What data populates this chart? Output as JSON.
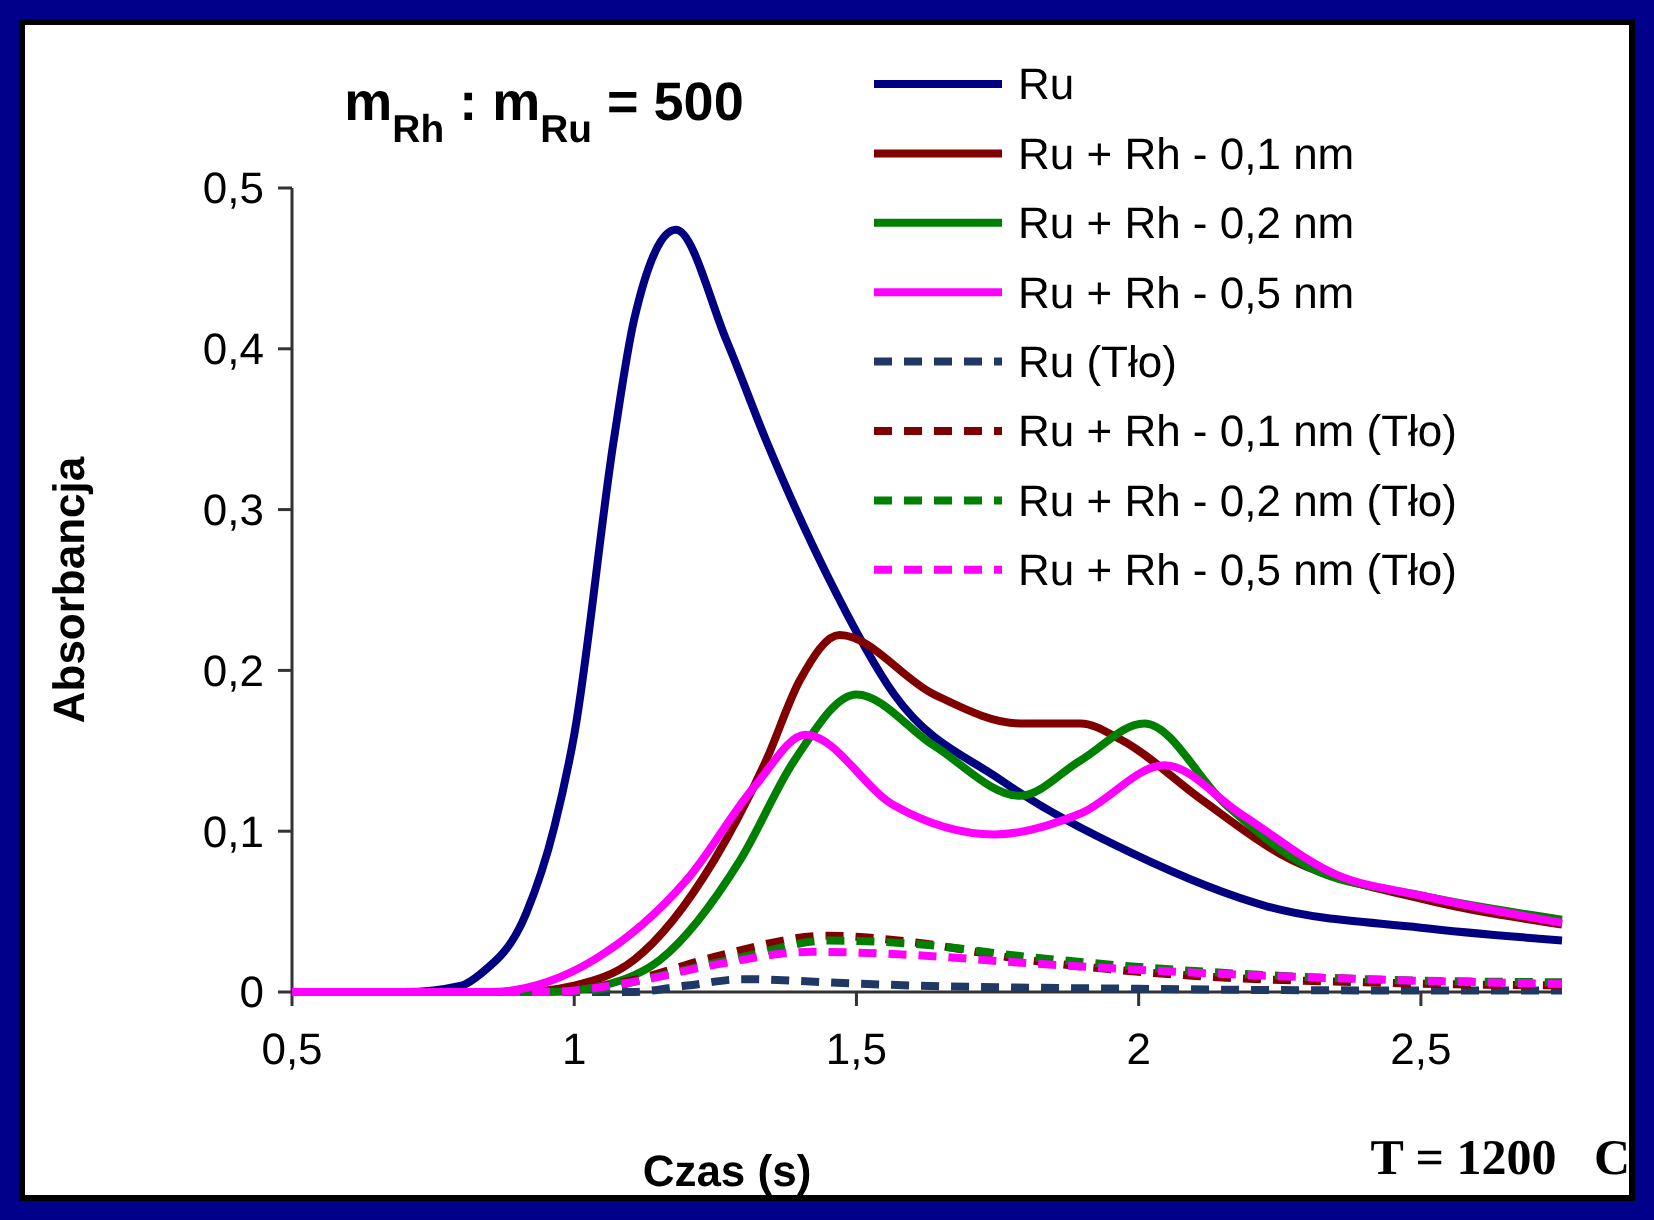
{
  "chart_data": {
    "type": "line",
    "title": "m$_{Rh}$ : m$_{Ru}$ = 500",
    "xlabel": "Czas (s)",
    "ylabel": "Absorbancja",
    "annotations": [
      "T = 1200   C"
    ],
    "xlim": [
      0.5,
      2.75
    ],
    "ylim": [
      0,
      0.5
    ],
    "xticks": [
      {
        "value": 0.5,
        "label": "0,5"
      },
      1,
      {
        "value": 1.5,
        "label": "1,5"
      },
      2,
      {
        "value": 2.5,
        "label": "2,5"
      }
    ],
    "yticks": [
      0,
      {
        "value": 0.1,
        "label": "0,1"
      },
      {
        "value": 0.2,
        "label": "0,2"
      },
      {
        "value": 0.3,
        "label": "0,3"
      },
      {
        "value": 0.4,
        "label": "0,4"
      },
      {
        "value": 0.5,
        "label": "0,5"
      }
    ],
    "grid": false,
    "legend": "top right",
    "marker": "none",
    "series": [
      {
        "name": "Ru",
        "color": "#000080",
        "line_style": "solid",
        "x": [
          0.5,
          0.7,
          0.8,
          0.833,
          0.915,
          0.965,
          1.0,
          1.07,
          1.106,
          1.18,
          1.27,
          1.34,
          1.447,
          1.567,
          1.755,
          1.99,
          2.23,
          2.5,
          2.75
        ],
        "values": [
          0,
          0,
          0.004,
          0.011,
          0.049,
          0.103,
          0.16,
          0.343,
          0.418,
          0.474,
          0.405,
          0.343,
          0.26,
          0.185,
          0.132,
          0.086,
          0.053,
          0.04,
          0.032
        ]
      },
      {
        "name": "Ru + Rh - 0,1 nm",
        "color": "#800000",
        "line_style": "solid",
        "x": [
          0.5,
          0.9,
          1.0,
          1.106,
          1.248,
          1.34,
          1.4,
          1.47,
          1.638,
          1.79,
          1.897,
          1.968,
          2.11,
          2.25,
          2.5,
          2.75
        ],
        "values": [
          0,
          0,
          0.004,
          0.02,
          0.082,
          0.144,
          0.194,
          0.222,
          0.185,
          0.167,
          0.167,
          0.157,
          0.12,
          0.086,
          0.058,
          0.042
        ]
      },
      {
        "name": "Ru + Rh - 0,2 nm",
        "color": "#008000",
        "line_style": "solid",
        "x": [
          0.5,
          0.95,
          1.05,
          1.152,
          1.294,
          1.39,
          1.5,
          1.638,
          1.79,
          1.897,
          2.01,
          2.156,
          2.3,
          2.5,
          2.75
        ],
        "values": [
          0,
          0,
          0.004,
          0.02,
          0.082,
          0.144,
          0.185,
          0.153,
          0.122,
          0.144,
          0.167,
          0.116,
          0.078,
          0.06,
          0.045
        ]
      },
      {
        "name": "Ru + Rh - 0,5 nm",
        "color": "#ff00ff",
        "line_style": "solid",
        "x": [
          0.5,
          0.85,
          0.95,
          1.035,
          1.2,
          1.32,
          1.41,
          1.567,
          1.745,
          1.897,
          2.046,
          2.18,
          2.35,
          2.5,
          2.75
        ],
        "values": [
          0,
          0,
          0.006,
          0.02,
          0.07,
          0.128,
          0.16,
          0.116,
          0.098,
          0.111,
          0.141,
          0.111,
          0.073,
          0.06,
          0.043
        ]
      },
      {
        "name": "Ru (Tło)",
        "color": "#1f3864",
        "line_style": "dashed",
        "x": [
          0.5,
          1.1,
          1.2,
          1.3,
          1.45,
          1.6,
          2.0,
          2.4,
          2.75
        ],
        "values": [
          0,
          0,
          0.004,
          0.008,
          0.006,
          0.004,
          0.002,
          0.001,
          0.001
        ]
      },
      {
        "name": "Ru + Rh - 0,1 nm (Tło)",
        "color": "#800000",
        "line_style": "dashed",
        "x": [
          0.5,
          0.95,
          1.1,
          1.25,
          1.45,
          1.6,
          1.8,
          2.1,
          2.4,
          2.75
        ],
        "values": [
          0,
          0,
          0.007,
          0.022,
          0.035,
          0.031,
          0.02,
          0.01,
          0.006,
          0.004
        ]
      },
      {
        "name": "Ru + Rh - 0,2 nm (Tło)",
        "color": "#008000",
        "line_style": "dashed",
        "x": [
          0.5,
          1.0,
          1.15,
          1.3,
          1.45,
          1.6,
          1.8,
          2.1,
          2.4,
          2.75
        ],
        "values": [
          0,
          0,
          0.01,
          0.022,
          0.032,
          0.03,
          0.022,
          0.013,
          0.008,
          0.006
        ]
      },
      {
        "name": "Ru + Rh - 0,5 nm (Tło)",
        "color": "#ff00ff",
        "line_style": "dashed",
        "x": [
          0.5,
          0.95,
          1.1,
          1.25,
          1.42,
          1.6,
          1.8,
          2.1,
          2.4,
          2.75
        ],
        "values": [
          0,
          0,
          0.006,
          0.017,
          0.025,
          0.023,
          0.018,
          0.012,
          0.008,
          0.005
        ]
      }
    ]
  }
}
